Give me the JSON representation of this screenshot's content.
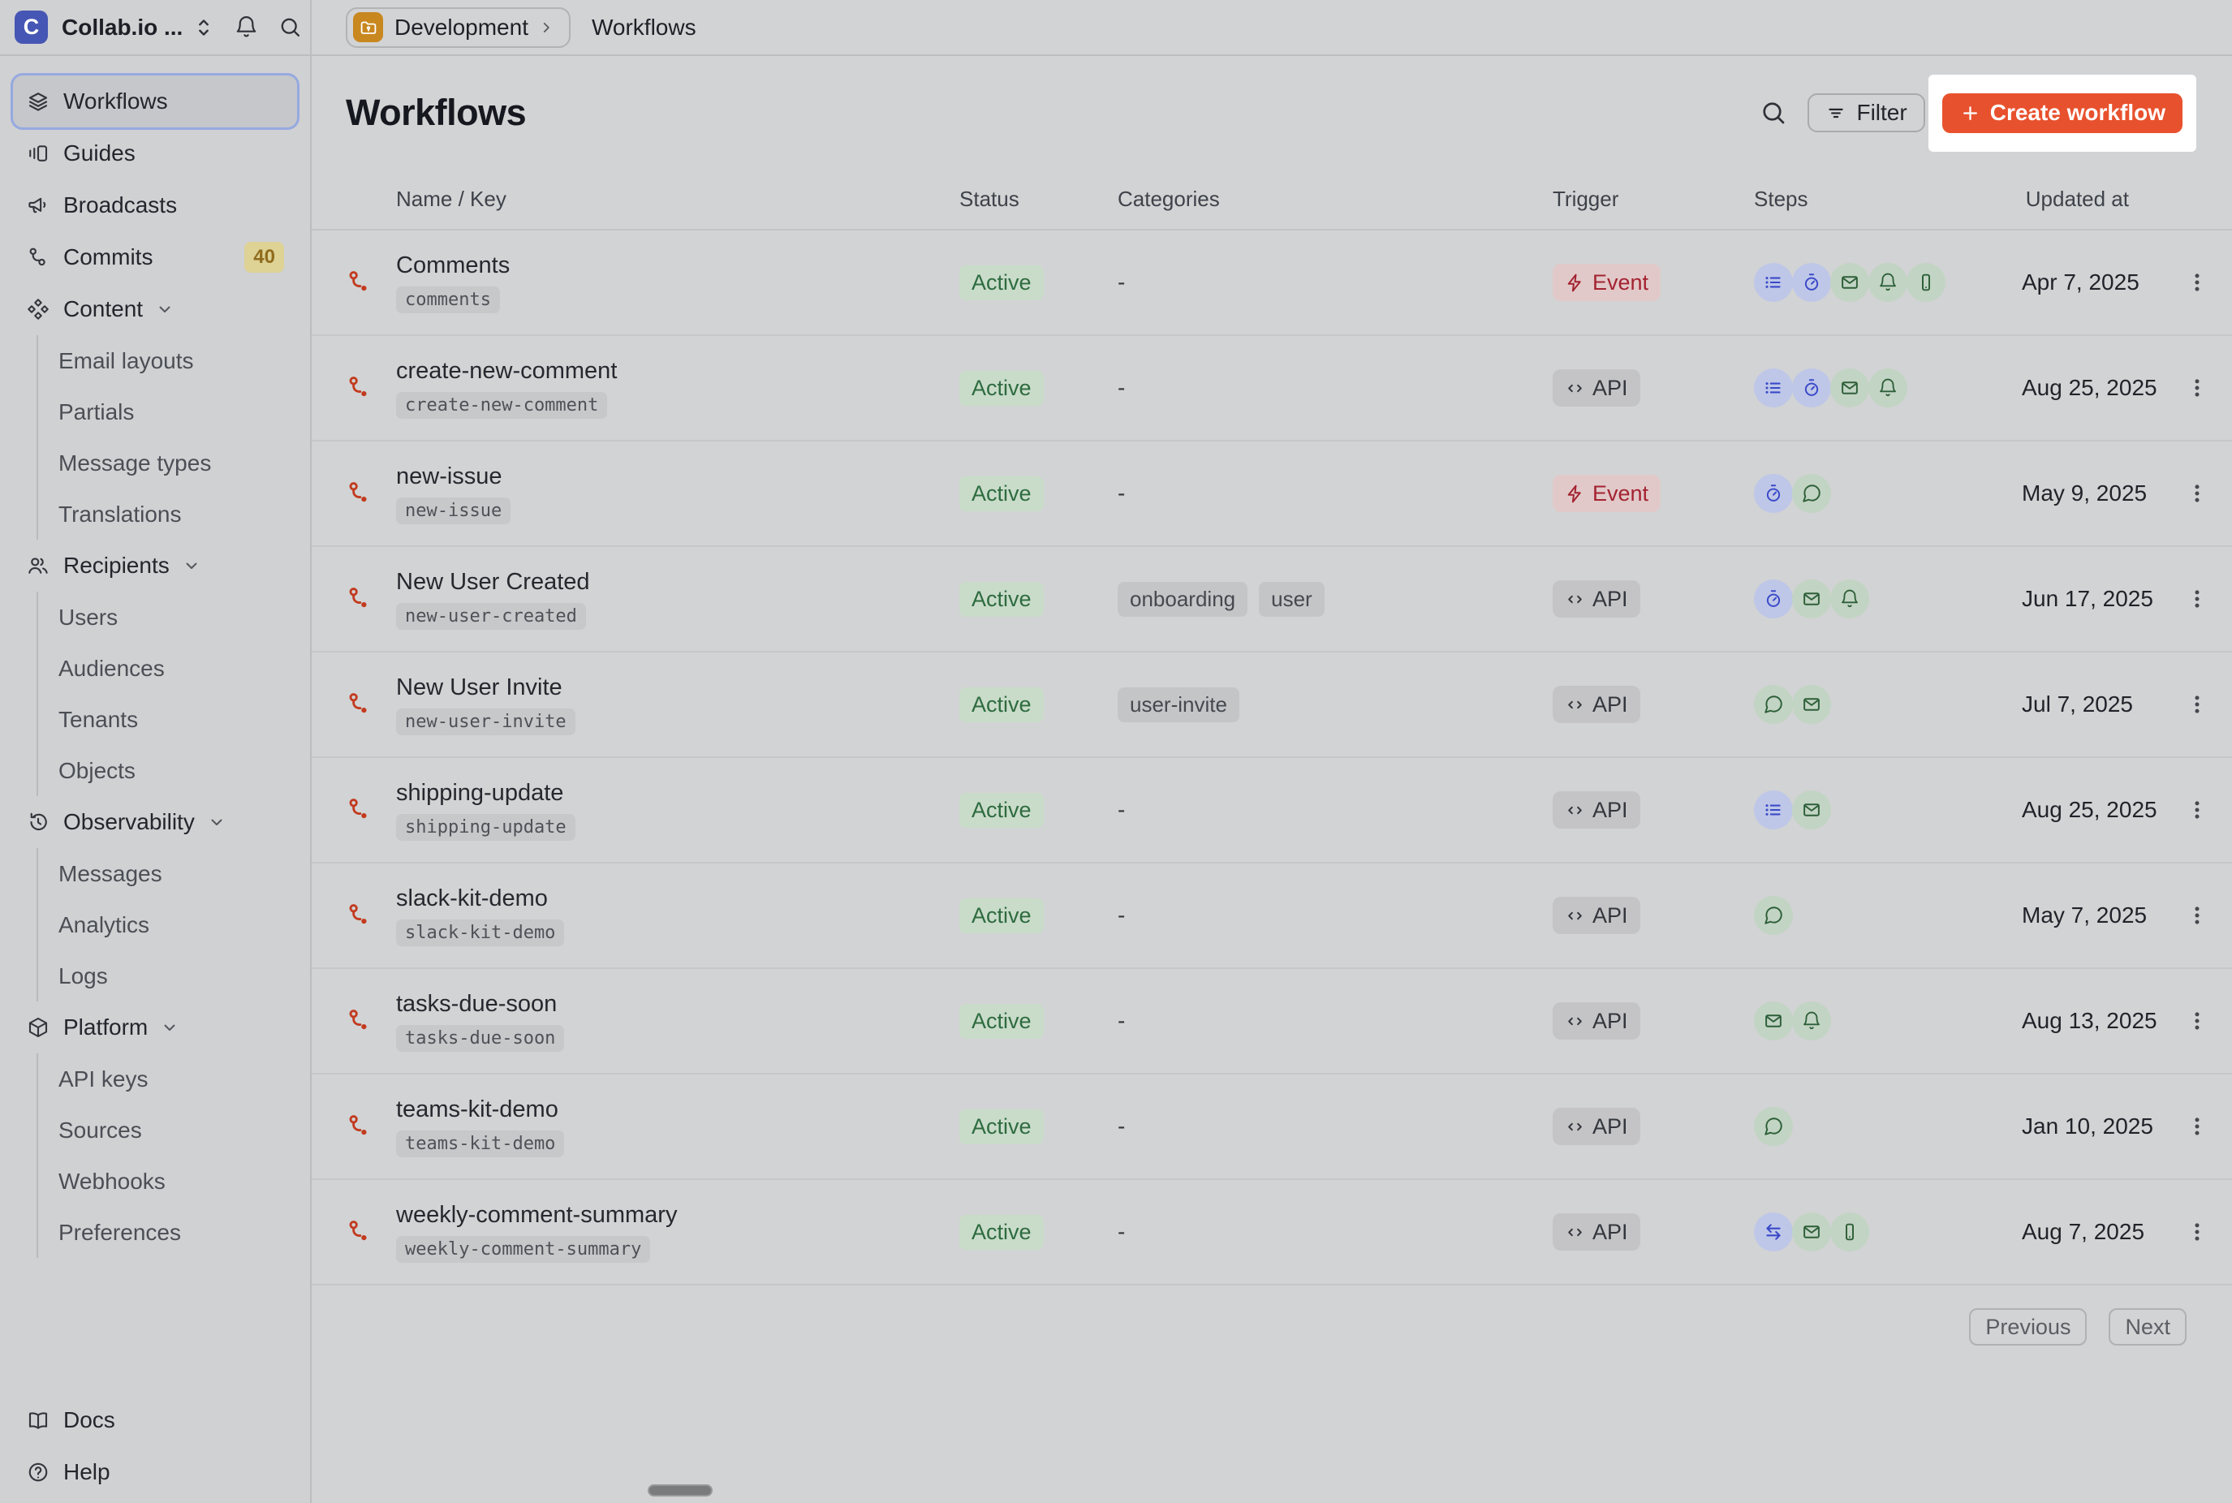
{
  "topbar": {
    "workspace": "Collab.io ...",
    "breadcrumb": {
      "environment": "Development",
      "page": "Workflows"
    }
  },
  "sidebar": {
    "items": [
      {
        "label": "Workflows",
        "icon": "layers",
        "selected": true
      },
      {
        "label": "Guides",
        "icon": "guides"
      },
      {
        "label": "Broadcasts",
        "icon": "megaphone"
      },
      {
        "label": "Commits",
        "icon": "branch",
        "badge": "40"
      },
      {
        "label": "Content",
        "icon": "content",
        "expandable": true
      },
      {
        "label": "Email layouts",
        "sub": true
      },
      {
        "label": "Partials",
        "sub": true
      },
      {
        "label": "Message types",
        "sub": true
      },
      {
        "label": "Translations",
        "sub": true
      },
      {
        "label": "Recipients",
        "icon": "users",
        "expandable": true
      },
      {
        "label": "Users",
        "sub": true
      },
      {
        "label": "Audiences",
        "sub": true
      },
      {
        "label": "Tenants",
        "sub": true
      },
      {
        "label": "Objects",
        "sub": true
      },
      {
        "label": "Observability",
        "icon": "history",
        "expandable": true
      },
      {
        "label": "Messages",
        "sub": true
      },
      {
        "label": "Analytics",
        "sub": true
      },
      {
        "label": "Logs",
        "sub": true
      },
      {
        "label": "Platform",
        "icon": "box",
        "expandable": true
      },
      {
        "label": "API keys",
        "sub": true
      },
      {
        "label": "Sources",
        "sub": true
      },
      {
        "label": "Webhooks",
        "sub": true
      },
      {
        "label": "Preferences",
        "sub": true
      }
    ],
    "footer": [
      {
        "label": "Docs",
        "icon": "book"
      },
      {
        "label": "Help",
        "icon": "help"
      }
    ]
  },
  "page": {
    "title": "Workflows",
    "filter_label": "Filter",
    "create_label": "Create workflow"
  },
  "table": {
    "columns": [
      "Name / Key",
      "Status",
      "Categories",
      "Trigger",
      "Steps",
      "Updated at"
    ],
    "empty_value": "-",
    "rows": [
      {
        "name": "Comments",
        "key": "comments",
        "status": "Active",
        "categories": [],
        "trigger": {
          "type": "event",
          "label": "Event"
        },
        "steps": [
          {
            "icon": "list",
            "kind": "function"
          },
          {
            "icon": "timer",
            "kind": "function"
          },
          {
            "icon": "mail",
            "kind": "channel"
          },
          {
            "icon": "bell",
            "kind": "channel"
          },
          {
            "icon": "phone",
            "kind": "channel"
          }
        ],
        "updated": "Apr 7, 2025"
      },
      {
        "name": "create-new-comment",
        "key": "create-new-comment",
        "status": "Active",
        "categories": [],
        "trigger": {
          "type": "api",
          "label": "API"
        },
        "steps": [
          {
            "icon": "list",
            "kind": "function"
          },
          {
            "icon": "timer",
            "kind": "function"
          },
          {
            "icon": "mail",
            "kind": "channel"
          },
          {
            "icon": "bell",
            "kind": "channel"
          }
        ],
        "updated": "Aug 25, 2025"
      },
      {
        "name": "new-issue",
        "key": "new-issue",
        "status": "Active",
        "categories": [],
        "trigger": {
          "type": "event",
          "label": "Event"
        },
        "steps": [
          {
            "icon": "timer",
            "kind": "function"
          },
          {
            "icon": "chat",
            "kind": "channel"
          }
        ],
        "updated": "May 9, 2025"
      },
      {
        "name": "New User Created",
        "key": "new-user-created",
        "status": "Active",
        "categories": [
          "onboarding",
          "user"
        ],
        "trigger": {
          "type": "api",
          "label": "API"
        },
        "steps": [
          {
            "icon": "timer",
            "kind": "function"
          },
          {
            "icon": "mail",
            "kind": "channel"
          },
          {
            "icon": "bell",
            "kind": "channel"
          }
        ],
        "updated": "Jun 17, 2025"
      },
      {
        "name": "New User Invite",
        "key": "new-user-invite",
        "status": "Active",
        "categories": [
          "user-invite"
        ],
        "trigger": {
          "type": "api",
          "label": "API"
        },
        "steps": [
          {
            "icon": "chat",
            "kind": "channel"
          },
          {
            "icon": "mail",
            "kind": "channel"
          }
        ],
        "updated": "Jul 7, 2025"
      },
      {
        "name": "shipping-update",
        "key": "shipping-update",
        "status": "Active",
        "categories": [],
        "trigger": {
          "type": "api",
          "label": "API"
        },
        "steps": [
          {
            "icon": "list",
            "kind": "function"
          },
          {
            "icon": "mail",
            "kind": "channel"
          }
        ],
        "updated": "Aug 25, 2025"
      },
      {
        "name": "slack-kit-demo",
        "key": "slack-kit-demo",
        "status": "Active",
        "categories": [],
        "trigger": {
          "type": "api",
          "label": "API"
        },
        "steps": [
          {
            "icon": "chat",
            "kind": "channel"
          }
        ],
        "updated": "May 7, 2025"
      },
      {
        "name": "tasks-due-soon",
        "key": "tasks-due-soon",
        "status": "Active",
        "categories": [],
        "trigger": {
          "type": "api",
          "label": "API"
        },
        "steps": [
          {
            "icon": "mail",
            "kind": "channel"
          },
          {
            "icon": "bell",
            "kind": "channel"
          }
        ],
        "updated": "Aug 13, 2025"
      },
      {
        "name": "teams-kit-demo",
        "key": "teams-kit-demo",
        "status": "Active",
        "categories": [],
        "trigger": {
          "type": "api",
          "label": "API"
        },
        "steps": [
          {
            "icon": "chat",
            "kind": "channel"
          }
        ],
        "updated": "Jan 10, 2025"
      },
      {
        "name": "weekly-comment-summary",
        "key": "weekly-comment-summary",
        "status": "Active",
        "categories": [],
        "trigger": {
          "type": "api",
          "label": "API"
        },
        "steps": [
          {
            "icon": "swap",
            "kind": "function"
          },
          {
            "icon": "mail",
            "kind": "channel"
          },
          {
            "icon": "phone",
            "kind": "channel"
          }
        ],
        "updated": "Aug 7, 2025"
      }
    ]
  },
  "pagination": {
    "previous": "Previous",
    "next": "Next"
  },
  "colors": {
    "accent_orange": "#e8512d",
    "highlight_box": "#ffffff",
    "status_active_bg": "#c9dcc9",
    "status_active_text": "#2e6b40",
    "trigger_event_bg": "#e2c9c9",
    "trigger_event_text": "#a32331",
    "trigger_api_bg": "#c4c4c7",
    "step_function_bg": "#bec7e8",
    "step_function_icon": "#3a49c8",
    "step_channel_bg": "#c2d4c3",
    "step_channel_icon": "#2d5f39",
    "workflow_icon": "#c23a1e",
    "logo_bg": "#4656b4",
    "folder_bg": "#c9871f"
  }
}
